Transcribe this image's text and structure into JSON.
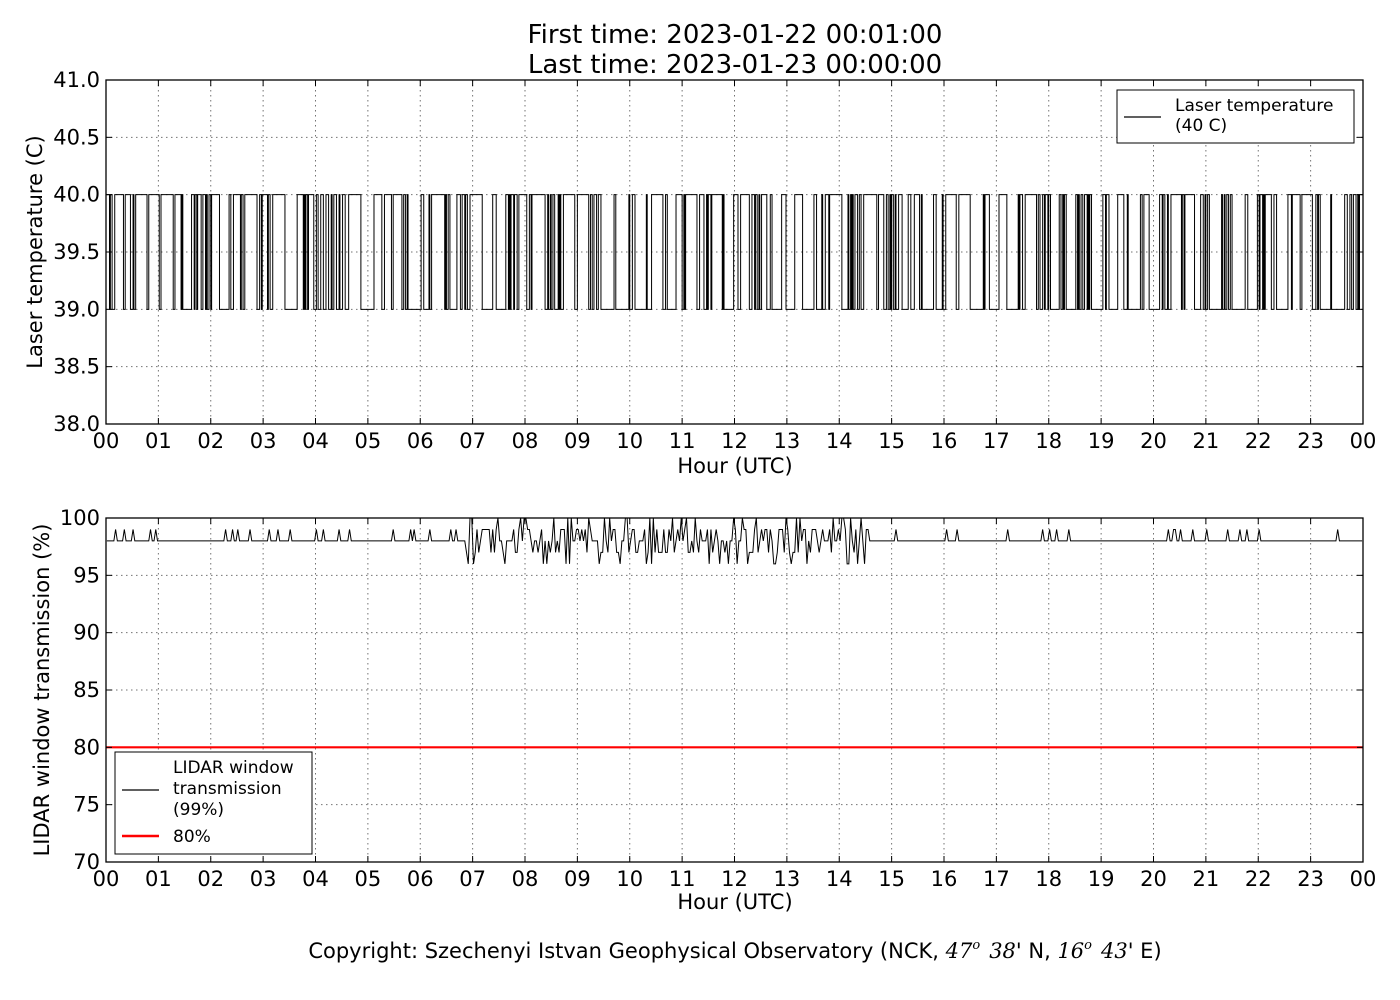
{
  "title": {
    "line1": "First time: 2023-01-22 00:01:00",
    "line2": "Last time: 2023-01-23 00:00:00"
  },
  "copyright": {
    "prefix": "Copyright: Szechenyi Istvan Geophysical Observatory (NCK, ",
    "lat_deg": "47",
    "lat_deg_sup": "o",
    "lat_min": "38",
    "lat_suffix": "' N, ",
    "lon_deg": "16",
    "lon_deg_sup": "o",
    "lon_min": "43",
    "lon_suffix": "' E)"
  },
  "colors": {
    "series": "#000000",
    "threshold": "#ff0000"
  },
  "chart_data": [
    {
      "type": "line",
      "xlabel": "Hour (UTC)",
      "ylabel": "Laser temperature (C)",
      "xlim": [
        0,
        24
      ],
      "ylim": [
        38.0,
        41.0
      ],
      "x_tick_labels": [
        "00",
        "01",
        "02",
        "03",
        "04",
        "05",
        "06",
        "07",
        "08",
        "09",
        "10",
        "11",
        "12",
        "13",
        "14",
        "15",
        "16",
        "17",
        "18",
        "19",
        "20",
        "21",
        "22",
        "23",
        "00"
      ],
      "y_tick_labels": [
        "38.0",
        "38.5",
        "39.0",
        "39.5",
        "40.0",
        "40.5",
        "41.0"
      ],
      "grid": true,
      "legend_position": "top-right",
      "series": [
        {
          "name": "Laser temperature\n(40 C)",
          "legend_lines": [
            "Laser temperature",
            "(40 C)"
          ],
          "description": "1-minute samples toggling between 39.0 and 40.0 C throughout the day",
          "levels": [
            39.0,
            40.0
          ],
          "x_start": 0.0167,
          "x_end": 24.0
        }
      ]
    },
    {
      "type": "line",
      "xlabel": "Hour (UTC)",
      "ylabel": "LIDAR window transmission (%)",
      "xlim": [
        0,
        24
      ],
      "ylim": [
        70,
        100
      ],
      "x_tick_labels": [
        "00",
        "01",
        "02",
        "03",
        "04",
        "05",
        "06",
        "07",
        "08",
        "09",
        "10",
        "11",
        "12",
        "13",
        "14",
        "15",
        "16",
        "17",
        "18",
        "19",
        "20",
        "21",
        "22",
        "23",
        "00"
      ],
      "y_tick_labels": [
        "70",
        "75",
        "80",
        "85",
        "90",
        "95",
        "100"
      ],
      "grid": true,
      "legend_position": "bottom-left",
      "series": [
        {
          "name": "LIDAR window\ntransmission\n(99%)",
          "legend_lines": [
            "LIDAR window",
            "transmission",
            "(99%)"
          ],
          "baseline": 98,
          "spikes_to": 99,
          "noisy_window_hours": [
            6.8,
            14.6
          ],
          "noisy_min": 96,
          "noisy_max": 100
        },
        {
          "name": "80%",
          "legend_lines": [
            "80%"
          ],
          "value": 80
        }
      ]
    }
  ]
}
